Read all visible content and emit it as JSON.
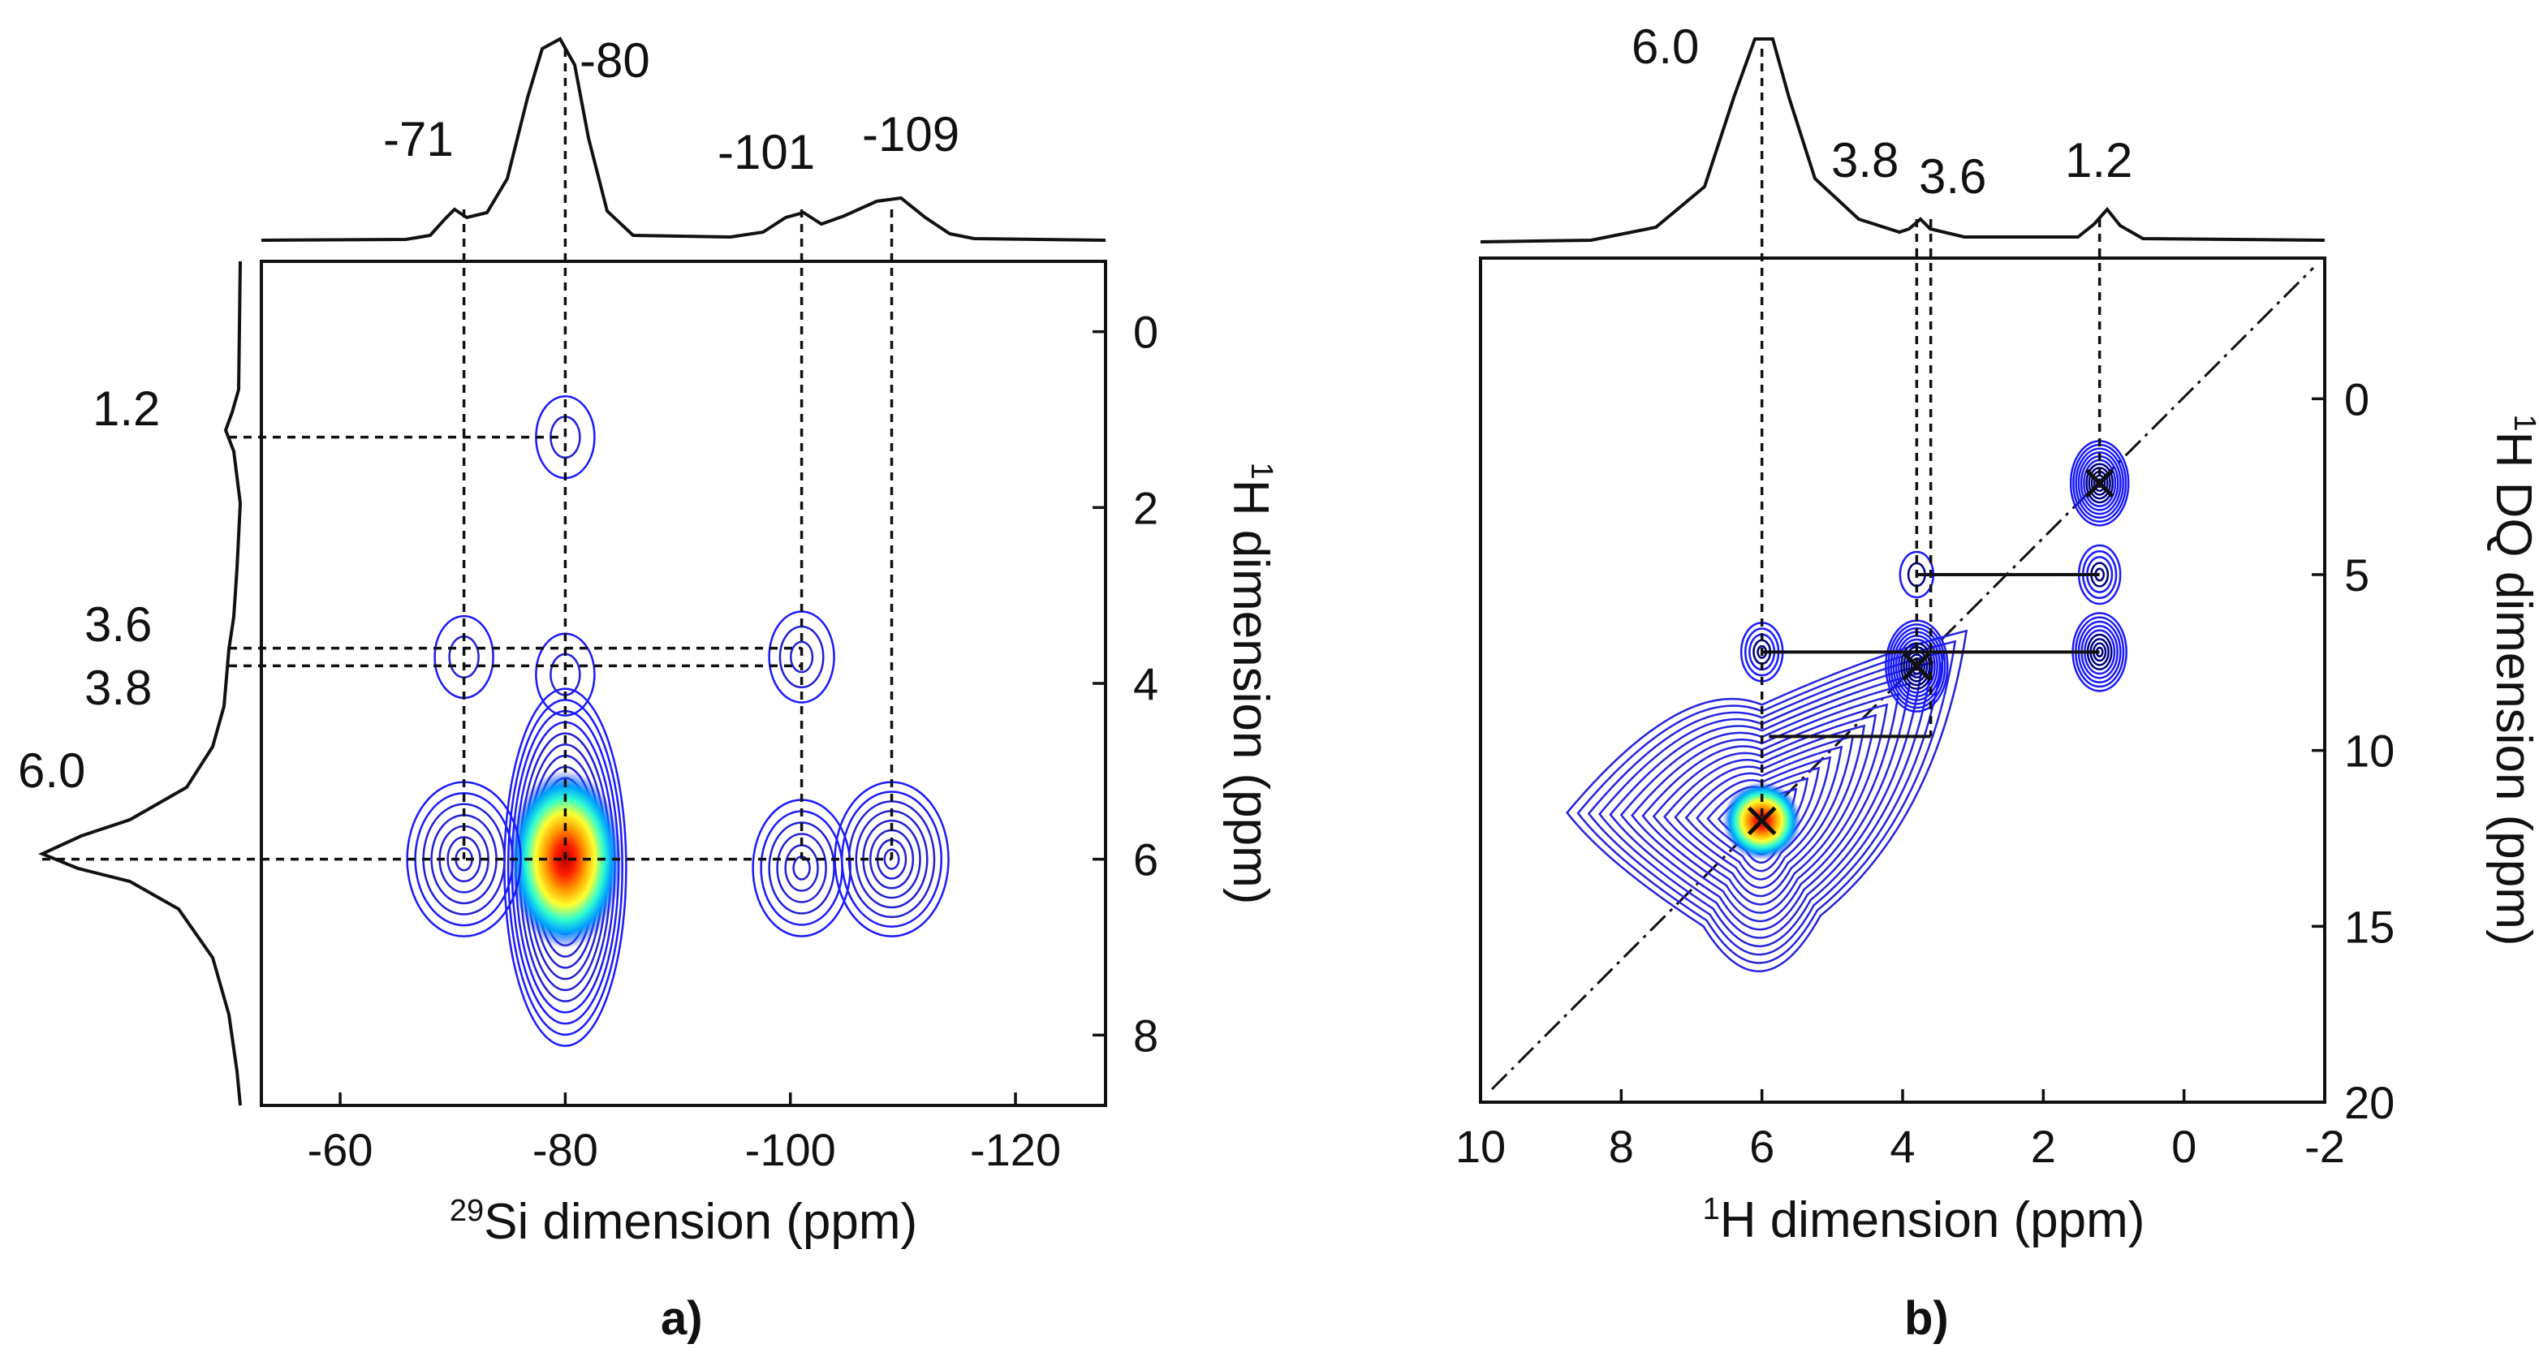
{
  "chart_data": [
    {
      "type": "heatmap",
      "panel_label": "a)",
      "xlabel": {
        "sup": "29",
        "text": "Si dimension (ppm)"
      },
      "ylabel": {
        "sup": "1",
        "text": "H dimension (ppm)"
      },
      "xlim": [
        -53,
        -128
      ],
      "ylim": [
        -0.8,
        8.8
      ],
      "xticks": [
        -60,
        -80,
        -100,
        -120
      ],
      "yticks": [
        0,
        2,
        4,
        6,
        8
      ],
      "top_projection": {
        "peaks": [
          -71,
          -80,
          -101,
          -109
        ]
      },
      "left_projection": {
        "peaks": [
          1.2,
          3.6,
          3.8,
          6.0
        ]
      },
      "peak_labels_x": [
        "-71",
        "-80",
        "-101",
        "-109"
      ],
      "peak_labels_y": [
        "1.2",
        "3.6",
        "3.8",
        "6.0"
      ],
      "contours": [
        {
          "x": -80,
          "y": 6.0,
          "intensity": 1.0
        },
        {
          "x": -71,
          "y": 6.0,
          "intensity": 0.25
        },
        {
          "x": -101,
          "y": 6.1,
          "intensity": 0.2
        },
        {
          "x": -109,
          "y": 6.0,
          "intensity": 0.3
        },
        {
          "x": -80,
          "y": 1.2,
          "intensity": 0.08
        },
        {
          "x": -71,
          "y": 3.7,
          "intensity": 0.08
        },
        {
          "x": -80,
          "y": 3.9,
          "intensity": 0.08
        },
        {
          "x": -101,
          "y": 3.7,
          "intensity": 0.1
        }
      ],
      "crosshairs_x": [
        -71,
        -80,
        -101,
        -109
      ],
      "crosshairs_y": [
        1.2,
        3.6,
        3.8,
        6.0
      ]
    },
    {
      "type": "heatmap",
      "panel_label": "b)",
      "xlabel": {
        "sup": "1",
        "text": "H dimension (ppm)"
      },
      "ylabel": {
        "sup": "1",
        "text": "H DQ dimension (ppm)"
      },
      "xlim": [
        10,
        -2
      ],
      "ylim": [
        -4,
        20
      ],
      "xticks": [
        10,
        8,
        6,
        4,
        2,
        0,
        -2
      ],
      "yticks": [
        0,
        5,
        10,
        15,
        20
      ],
      "top_projection": {
        "peaks": [
          6.0,
          3.8,
          3.6,
          1.2
        ]
      },
      "peak_labels_x": [
        "6.0",
        "3.8",
        "3.6",
        "1.2"
      ],
      "contours": [
        {
          "x": 6.0,
          "y": 12.0,
          "intensity": 1.0
        },
        {
          "x": 3.8,
          "y": 7.6,
          "intensity": 0.4
        },
        {
          "x": 1.2,
          "y": 2.4,
          "intensity": 0.35
        },
        {
          "x": 1.2,
          "y": 5.0,
          "intensity": 0.15
        },
        {
          "x": 1.2,
          "y": 7.2,
          "intensity": 0.3
        },
        {
          "x": 6.0,
          "y": 7.2,
          "intensity": 0.15
        },
        {
          "x": 3.8,
          "y": 5.0,
          "intensity": 0.05
        }
      ],
      "diagonal_markers": [
        {
          "x": 6.0,
          "y": 12.0
        },
        {
          "x": 3.8,
          "y": 7.6
        },
        {
          "x": 1.2,
          "y": 2.4
        }
      ],
      "correlation_lines": [
        {
          "x1": 3.8,
          "x2": 1.2,
          "y": 5.0
        },
        {
          "x1": 6.0,
          "x2": 1.2,
          "y": 7.2
        },
        {
          "x1": 5.9,
          "x2": 3.6,
          "y": 9.6
        }
      ],
      "vertical_guides": [
        6.0,
        3.8,
        3.6,
        1.2
      ]
    }
  ]
}
